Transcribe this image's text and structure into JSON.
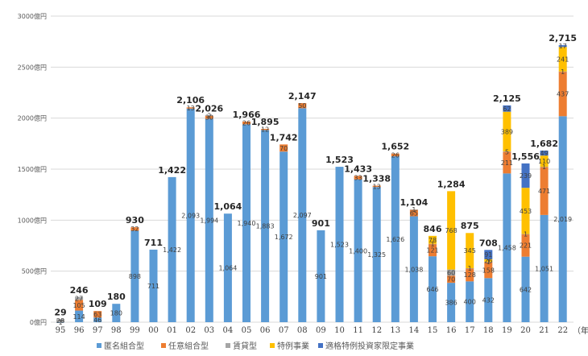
{
  "chart_data": {
    "type": "bar",
    "stacked": true,
    "title": "",
    "xlabel": "（年",
    "ylabel": "",
    "ylim": [
      0,
      3000
    ],
    "yticks": [
      0,
      500,
      1000,
      1500,
      2000,
      2500,
      3000
    ],
    "ytick_labels": [
      "0億円",
      "500億円",
      "1000億円",
      "1500億円",
      "2000億円",
      "2500億円",
      "3000億円"
    ],
    "grid": true,
    "legend_position": "bottom",
    "categories": [
      "95",
      "96",
      "97",
      "98",
      "99",
      "00",
      "01",
      "02",
      "03",
      "04",
      "05",
      "06",
      "07",
      "08",
      "09",
      "10",
      "11",
      "12",
      "13",
      "14",
      "15",
      "16",
      "17",
      "18",
      "19",
      "20",
      "21",
      "22"
    ],
    "series": [
      {
        "name": "匿名組合型",
        "color": "#5B9BD5",
        "values": [
          1,
          114,
          46,
          180,
          898,
          711,
          1422,
          2093,
          1994,
          1064,
          1940,
          1883,
          1672,
          2097,
          901,
          1523,
          1400,
          1325,
          1626,
          1038,
          646,
          386,
          400,
          432,
          1458,
          642,
          1051,
          2019
        ]
      },
      {
        "name": "任意組合型",
        "color": "#ED7D31",
        "values": [
          0,
          105,
          63,
          0,
          32,
          0,
          0,
          13,
          30,
          0,
          26,
          12,
          70,
          50,
          0,
          0,
          33,
          13,
          26,
          65,
          121,
          70,
          128,
          158,
          211,
          221,
          471,
          437
        ]
      },
      {
        "name": "賃貸型",
        "color": "#A5A5A5",
        "values": [
          28,
          27,
          0,
          0,
          0,
          0,
          0,
          0,
          2,
          0,
          0,
          0,
          0,
          0,
          0,
          0,
          0,
          0,
          0,
          1,
          1,
          60,
          1,
          1,
          5,
          1,
          1,
          1
        ]
      },
      {
        "name": "特例事業",
        "color": "#FFC000",
        "values": [
          0,
          0,
          0,
          0,
          0,
          0,
          0,
          0,
          0,
          0,
          0,
          0,
          0,
          0,
          0,
          0,
          0,
          0,
          0,
          0,
          78,
          768,
          345,
          26,
          389,
          453,
          110,
          241
        ]
      },
      {
        "name": "適格特例投資家限定事業",
        "color": "#4472C4",
        "values": [
          0,
          0,
          0,
          0,
          0,
          0,
          0,
          0,
          0,
          0,
          0,
          0,
          0,
          0,
          0,
          0,
          0,
          0,
          0,
          0,
          0,
          0,
          0,
          91,
          62,
          239,
          49,
          17
        ]
      }
    ],
    "totals": [
      29,
      246,
      109,
      180,
      930,
      711,
      1422,
      2106,
      2026,
      1064,
      1966,
      1895,
      1742,
      2147,
      901,
      1523,
      1433,
      1338,
      1652,
      1104,
      846,
      1284,
      875,
      708,
      2125,
      1556,
      1682,
      2715
    ],
    "total_labels": [
      "29",
      "246",
      "109",
      "180",
      "930",
      "711",
      "1,422",
      "2,106",
      "2,026",
      "1,064",
      "1,966",
      "1,895",
      "1,742",
      "2,147",
      "901",
      "1,523",
      "1,433",
      "1,338",
      "1,652",
      "1,104",
      "846",
      "1,284",
      "875",
      "708",
      "2,125",
      "1,556",
      "1,682",
      "2,715"
    ]
  }
}
